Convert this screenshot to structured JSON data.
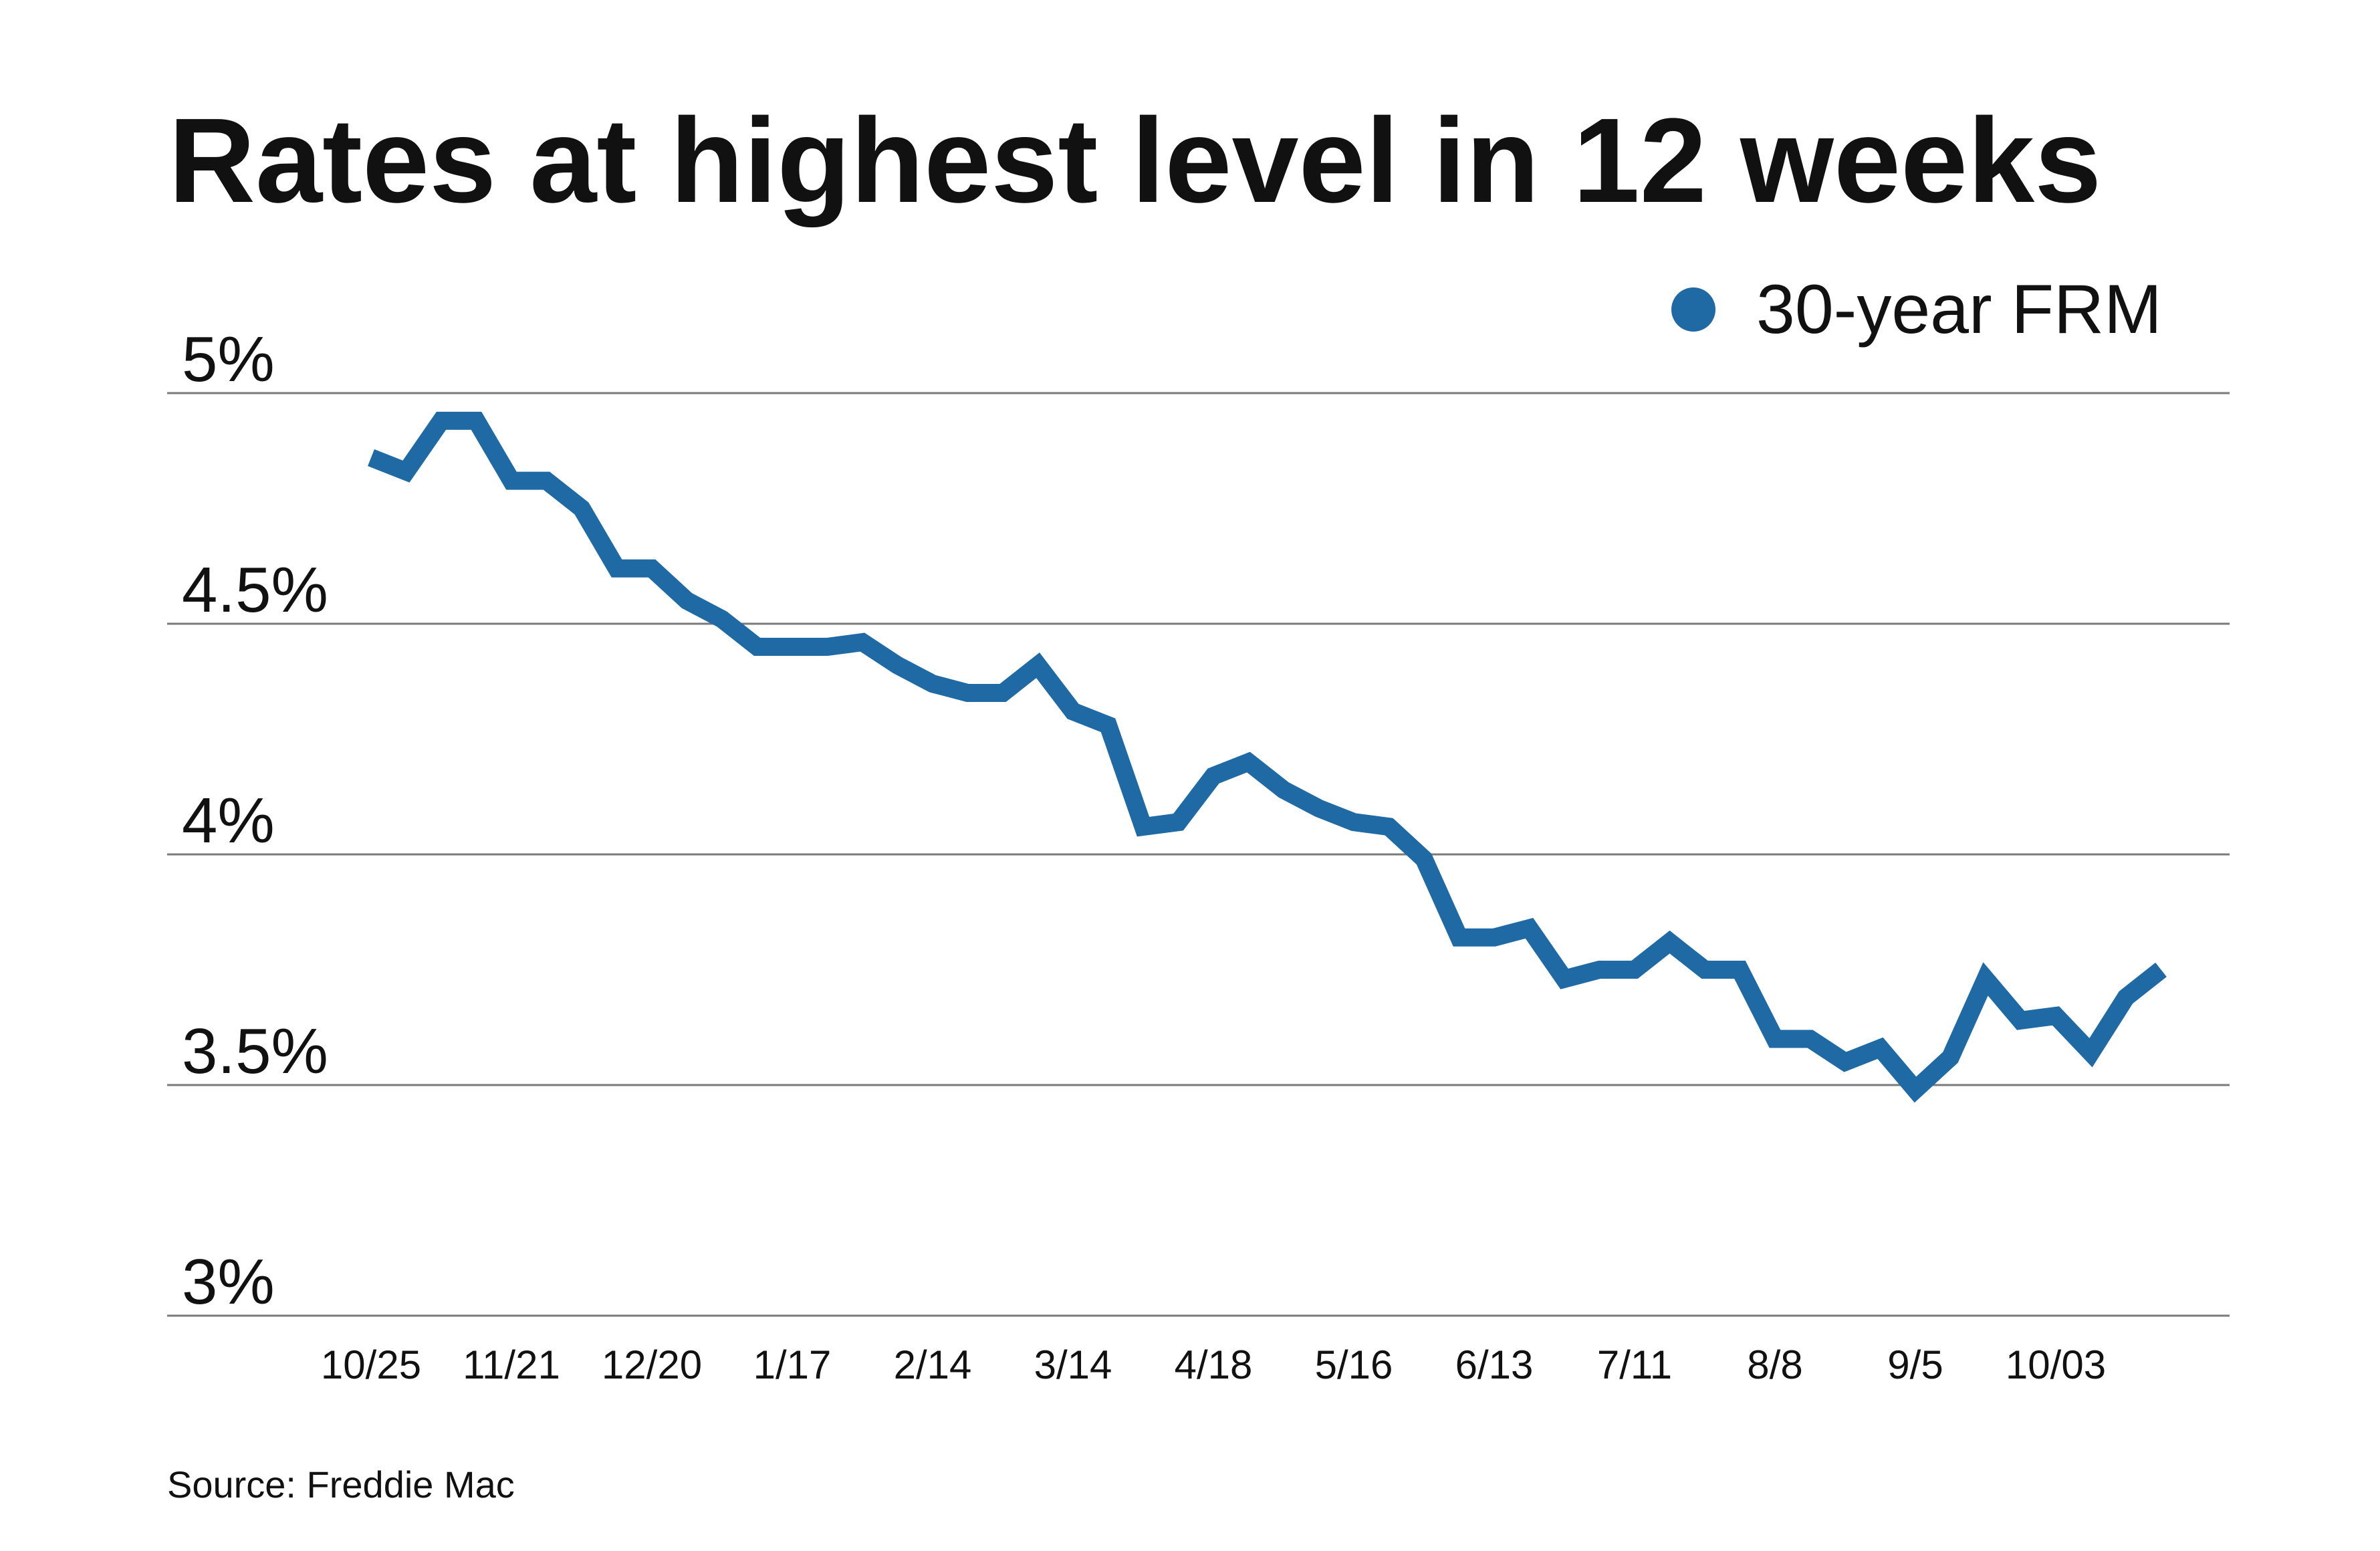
{
  "chart_data": {
    "type": "line",
    "title": "Rates at highest level in 12 weeks",
    "source": "Source: Freddie Mac",
    "ylim": [
      3,
      5
    ],
    "yticks": [
      {
        "value": 5,
        "label": "5%"
      },
      {
        "value": 4.5,
        "label": "4.5%"
      },
      {
        "value": 4,
        "label": "4%"
      },
      {
        "value": 3.5,
        "label": "3.5%"
      },
      {
        "value": 3,
        "label": "3%"
      }
    ],
    "grid": true,
    "xtick_labels": [
      "10/25",
      "11/21",
      "12/20",
      "1/17",
      "2/14",
      "3/14",
      "4/18",
      "5/16",
      "6/13",
      "7/11",
      "8/8",
      "9/5",
      "10/03"
    ],
    "xtick_indices": [
      0,
      4,
      8,
      12,
      16,
      20,
      24,
      28,
      32,
      36,
      40,
      44,
      48
    ],
    "legend": {
      "position": "top-right"
    },
    "series": [
      {
        "name": "30-year FRM",
        "color": "#1f6aa5",
        "values": [
          4.86,
          4.83,
          4.94,
          4.94,
          4.81,
          4.81,
          4.75,
          4.62,
          4.62,
          4.55,
          4.51,
          4.45,
          4.45,
          4.45,
          4.46,
          4.41,
          4.37,
          4.35,
          4.35,
          4.41,
          4.31,
          4.28,
          4.06,
          4.07,
          4.17,
          4.2,
          4.14,
          4.1,
          4.07,
          4.06,
          3.99,
          3.82,
          3.82,
          3.84,
          3.73,
          3.75,
          3.75,
          3.81,
          3.75,
          3.75,
          3.6,
          3.6,
          3.55,
          3.58,
          3.49,
          3.56,
          3.73,
          3.64,
          3.65,
          3.57,
          3.69,
          3.75
        ]
      }
    ]
  }
}
